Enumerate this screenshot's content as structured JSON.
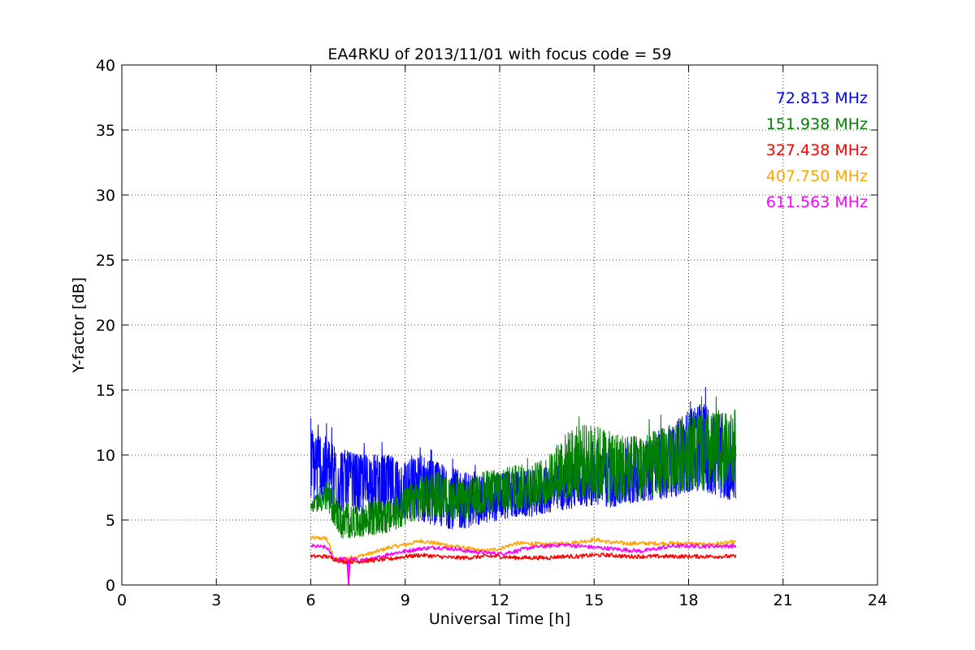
{
  "chart_data": {
    "type": "line",
    "title": "EA4RKU of 2013/11/01 with focus code = 59",
    "xlabel": "Universal Time [h]",
    "ylabel": "Y-factor [dB]",
    "xlim": [
      0,
      24
    ],
    "ylim": [
      0,
      40
    ],
    "xticks": [
      0,
      3,
      6,
      9,
      12,
      15,
      18,
      21,
      24
    ],
    "yticks": [
      0,
      5,
      10,
      15,
      20,
      25,
      30,
      35,
      40
    ],
    "grid": true,
    "legend_position": "top-right",
    "series": [
      {
        "name": "72.813 MHz",
        "color": "#0000ff",
        "x": [
          6.0,
          6.5,
          7.0,
          7.5,
          8.0,
          8.5,
          9.0,
          9.5,
          10.0,
          10.5,
          11.0,
          11.5,
          12.0,
          12.5,
          13.0,
          13.5,
          14.0,
          14.5,
          15.0,
          15.5,
          16.0,
          16.5,
          17.0,
          17.5,
          18.0,
          18.5,
          19.0,
          19.5
        ],
        "y_low": [
          5.5,
          5.0,
          4.5,
          4.5,
          4.5,
          4.0,
          4.0,
          3.8,
          3.5,
          3.3,
          3.5,
          4.0,
          4.2,
          4.5,
          4.5,
          4.8,
          5.0,
          5.2,
          5.2,
          5.0,
          5.2,
          5.5,
          5.5,
          5.5,
          5.8,
          5.8,
          5.5,
          5.5
        ],
        "y_high": [
          13.2,
          12.5,
          11.5,
          11.0,
          11.0,
          11.0,
          10.5,
          11.0,
          10.5,
          10.0,
          9.5,
          9.0,
          9.5,
          9.5,
          9.5,
          9.8,
          10.0,
          10.5,
          11.5,
          11.5,
          11.5,
          12.0,
          12.5,
          13.5,
          15.0,
          15.4,
          13.5,
          12.0
        ]
      },
      {
        "name": "151.938 MHz",
        "color": "#008000",
        "x": [
          6.0,
          6.5,
          7.0,
          7.5,
          8.0,
          8.5,
          9.0,
          9.5,
          10.0,
          10.5,
          11.0,
          11.5,
          12.0,
          12.5,
          13.0,
          13.5,
          14.0,
          14.5,
          15.0,
          15.5,
          16.0,
          16.5,
          17.0,
          17.5,
          18.0,
          18.5,
          19.0,
          19.5
        ],
        "y_low": [
          5.5,
          5.2,
          3.0,
          3.2,
          3.3,
          3.5,
          4.0,
          4.5,
          4.5,
          4.5,
          4.5,
          4.8,
          5.0,
          5.0,
          5.2,
          5.5,
          5.5,
          5.5,
          5.5,
          5.0,
          5.5,
          5.5,
          5.8,
          6.0,
          6.0,
          6.0,
          6.2,
          6.5
        ],
        "y_high": [
          6.5,
          8.5,
          6.5,
          6.5,
          7.0,
          7.0,
          8.0,
          9.0,
          9.5,
          8.5,
          8.5,
          9.5,
          9.5,
          10.0,
          10.0,
          10.5,
          12.5,
          13.5,
          13.5,
          13.0,
          12.5,
          12.5,
          13.0,
          13.5,
          14.5,
          14.5,
          14.5,
          14.2
        ]
      },
      {
        "name": "327.438 MHz",
        "color": "#ff0000",
        "x": [
          6.0,
          6.5,
          7.0,
          7.5,
          8.0,
          8.5,
          9.0,
          9.5,
          10.0,
          10.5,
          11.0,
          11.5,
          12.0,
          12.5,
          13.0,
          13.5,
          14.0,
          14.5,
          15.0,
          15.5,
          16.0,
          16.5,
          17.0,
          17.5,
          18.0,
          18.5,
          19.0,
          19.5
        ],
        "y": [
          2.2,
          2.2,
          1.8,
          1.8,
          1.9,
          2.0,
          2.2,
          2.3,
          2.2,
          2.1,
          2.1,
          2.2,
          2.2,
          2.1,
          2.1,
          2.1,
          2.2,
          2.2,
          2.3,
          2.3,
          2.2,
          2.2,
          2.2,
          2.2,
          2.2,
          2.2,
          2.2,
          2.2
        ]
      },
      {
        "name": "407.750 MHz",
        "color": "#ffa500",
        "x": [
          6.0,
          6.5,
          6.75,
          7.0,
          7.5,
          8.0,
          8.5,
          9.0,
          9.5,
          10.0,
          10.5,
          11.0,
          11.5,
          12.0,
          12.5,
          13.0,
          13.5,
          14.0,
          14.5,
          15.0,
          15.5,
          16.0,
          16.5,
          17.0,
          17.5,
          18.0,
          18.5,
          19.0,
          19.5
        ],
        "y": [
          3.6,
          3.6,
          2.0,
          2.0,
          2.2,
          2.5,
          2.9,
          3.1,
          3.4,
          3.2,
          3.0,
          2.8,
          2.6,
          2.8,
          3.2,
          3.2,
          3.1,
          3.2,
          3.3,
          3.5,
          3.3,
          3.2,
          3.2,
          3.2,
          3.2,
          3.2,
          3.1,
          3.2,
          3.3
        ]
      },
      {
        "name": "611.563 MHz",
        "color": "#ff00ff",
        "x": [
          6.0,
          6.5,
          6.75,
          7.0,
          7.15,
          7.2,
          7.25,
          7.5,
          8.0,
          8.5,
          9.0,
          9.5,
          10.0,
          10.5,
          11.0,
          11.5,
          12.0,
          12.5,
          13.0,
          13.5,
          14.0,
          14.5,
          15.0,
          15.5,
          16.0,
          16.5,
          17.0,
          17.5,
          18.0,
          18.5,
          19.0,
          19.5
        ],
        "y": [
          3.0,
          2.9,
          2.0,
          2.0,
          2.0,
          0.0,
          2.0,
          1.9,
          2.0,
          2.4,
          2.6,
          2.8,
          2.9,
          2.8,
          2.6,
          2.5,
          2.4,
          2.6,
          2.9,
          3.0,
          3.1,
          3.0,
          2.9,
          2.8,
          2.7,
          2.6,
          2.8,
          3.0,
          3.0,
          3.0,
          3.0,
          3.0
        ]
      }
    ]
  }
}
